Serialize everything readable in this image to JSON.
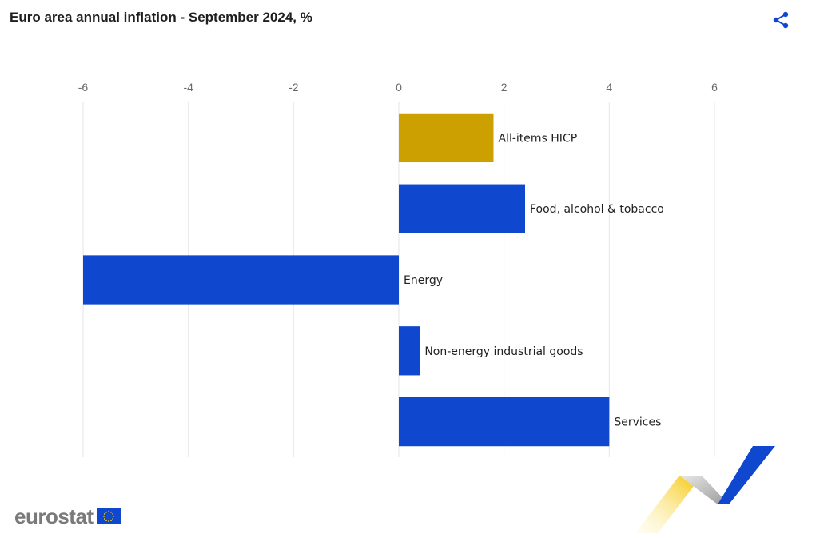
{
  "title": "Euro area annual inflation - September 2024, %",
  "share": {
    "icon": "share-icon"
  },
  "logo": {
    "text": "eurostat",
    "flag_icon": "eu-flag-icon"
  },
  "colors": {
    "highlight": "#CBA000",
    "bar": "#0F47CF",
    "grid": "#E6E6EC",
    "axis_text": "#6B6B6B"
  },
  "chart_data": {
    "type": "bar",
    "orientation": "horizontal",
    "title": "Euro area annual inflation - September 2024, %",
    "categories": [
      "All-items HICP",
      "Food, alcohol & tobacco",
      "Energy",
      "Non-energy industrial goods",
      "Services"
    ],
    "values": [
      1.8,
      2.4,
      -6.0,
      0.4,
      4.0
    ],
    "highlight_index": 0,
    "xlim": [
      -6,
      6
    ],
    "xticks": [
      -6,
      -4,
      -2,
      0,
      2,
      4,
      6
    ],
    "grid": true,
    "xaxis_position": "top",
    "legend": false
  }
}
